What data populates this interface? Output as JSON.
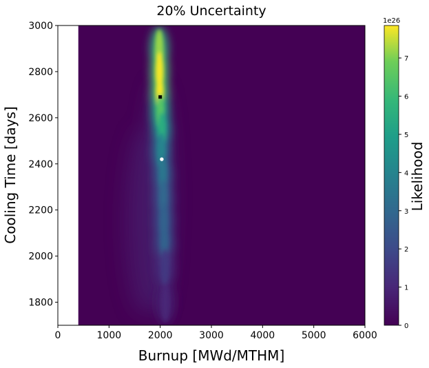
{
  "chart_data": {
    "type": "heatmap",
    "title": "20% Uncertainty",
    "xlabel": "Burnup [MWd/MTHM]",
    "ylabel": "Cooling Time [days]",
    "xlim": [
      0,
      6000
    ],
    "ylim": [
      1700,
      3000
    ],
    "data_x_start": 400,
    "x_ticks": [
      0,
      1000,
      2000,
      3000,
      4000,
      5000,
      6000
    ],
    "x_tick_labels": [
      "0",
      "1000",
      "2000",
      "3000",
      "4000",
      "5000",
      "6000"
    ],
    "y_ticks": [
      1800,
      2000,
      2200,
      2400,
      2600,
      2800,
      3000
    ],
    "y_tick_labels": [
      "1800",
      "2000",
      "2200",
      "2400",
      "2600",
      "2800",
      "3000"
    ],
    "colorbar": {
      "label": "Likelihood",
      "multiplier": "1e26",
      "range": [
        0,
        7.85
      ],
      "ticks": [
        0,
        1,
        2,
        3,
        4,
        5,
        6,
        7
      ],
      "tick_labels": [
        "0",
        "1",
        "2",
        "3",
        "4",
        "5",
        "6",
        "7"
      ],
      "colormap": "viridis"
    },
    "likelihood_ridge": [
      {
        "x": 1980,
        "y": 2900,
        "value": 7.2
      },
      {
        "x": 1985,
        "y": 2800,
        "value": 7.8
      },
      {
        "x": 1990,
        "y": 2700,
        "value": 7.8
      },
      {
        "x": 2000,
        "y": 2620,
        "value": 6.5
      },
      {
        "x": 2030,
        "y": 2540,
        "value": 5.5
      },
      {
        "x": 2020,
        "y": 2450,
        "value": 4.0
      },
      {
        "x": 2050,
        "y": 2350,
        "value": 3.5
      },
      {
        "x": 2060,
        "y": 2250,
        "value": 3.0
      },
      {
        "x": 2070,
        "y": 2150,
        "value": 2.8
      },
      {
        "x": 2080,
        "y": 2050,
        "value": 2.8
      },
      {
        "x": 2090,
        "y": 1950,
        "value": 1.5
      },
      {
        "x": 2100,
        "y": 1800,
        "value": 1.0
      }
    ],
    "markers": [
      {
        "name": "max-likelihood",
        "x": 2000,
        "y": 2690,
        "color": "#000000",
        "shape": "square"
      },
      {
        "name": "true-value",
        "x": 2030,
        "y": 2420,
        "color": "#ffffff",
        "shape": "circle"
      }
    ],
    "background_color": "#440154"
  }
}
